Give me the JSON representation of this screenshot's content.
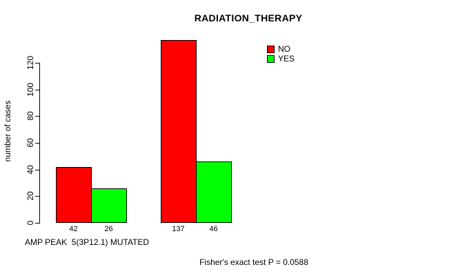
{
  "chart_data": {
    "type": "bar",
    "title": "RADIATION_THERAPY",
    "ylabel": "number of cases",
    "xlabel": "AMP PEAK  5(3P12.1) MUTATED",
    "footer": "Fisher's exact test P = 0.0588",
    "groups": 2,
    "series": [
      {
        "name": "NO",
        "color": "#ff0000",
        "values": [
          42,
          137
        ]
      },
      {
        "name": "YES",
        "color": "#00ff00",
        "values": [
          26,
          46
        ]
      }
    ],
    "bar_value_labels": [
      [
        "42",
        "26"
      ],
      [
        "137",
        "46"
      ]
    ],
    "yticks": [
      0,
      20,
      40,
      60,
      80,
      100,
      120
    ],
    "ylim": [
      0,
      120
    ],
    "grid": false,
    "legend_position": "top-right",
    "legend_colors": {
      "NO": "#ff0000",
      "YES": "#00ff00"
    }
  }
}
